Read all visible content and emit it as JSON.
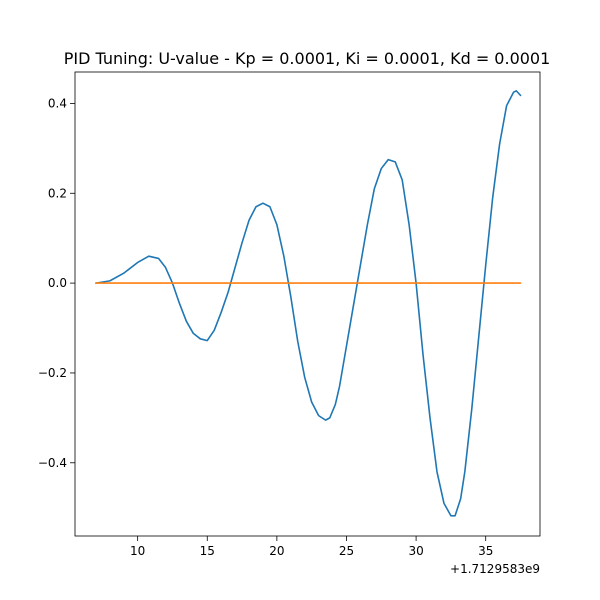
{
  "chart_data": {
    "type": "line",
    "title": "PID Tuning: U-value - Kp = 0.0001, Ki = 0.0001, Kd = 0.0001",
    "xlabel": "",
    "ylabel": "",
    "x_offset_label": "+1.7129583e9",
    "xlim": [
      5.5,
      38.9
    ],
    "ylim": [
      -0.563,
      0.47
    ],
    "xticks": [
      10,
      15,
      20,
      25,
      30,
      35
    ],
    "xtick_labels": [
      "10",
      "15",
      "20",
      "25",
      "30",
      "35"
    ],
    "yticks": [
      -0.4,
      -0.2,
      0.0,
      0.2,
      0.4
    ],
    "ytick_labels": [
      "−0.4",
      "−0.2",
      "0.0",
      "0.2",
      "0.4"
    ],
    "grid": false,
    "series": [
      {
        "color": "#1f77b4",
        "x": [
          7.0,
          8.0,
          9.0,
          10.0,
          10.8,
          11.5,
          12.0,
          12.5,
          13.0,
          13.5,
          14.0,
          14.5,
          15.0,
          15.5,
          16.0,
          16.5,
          17.0,
          17.5,
          18.0,
          18.5,
          19.0,
          19.5,
          20.0,
          20.5,
          21.0,
          21.5,
          22.0,
          22.5,
          23.0,
          23.5,
          23.8,
          24.2,
          24.5,
          25.0,
          25.5,
          26.0,
          26.5,
          27.0,
          27.5,
          28.0,
          28.5,
          29.0,
          29.5,
          30.0,
          30.5,
          31.0,
          31.5,
          32.0,
          32.5,
          32.8,
          33.2,
          33.5,
          34.0,
          34.5,
          35.0,
          35.5,
          36.0,
          36.5,
          37.0,
          37.2,
          37.5
        ],
        "y": [
          0.0,
          0.005,
          0.022,
          0.046,
          0.06,
          0.055,
          0.035,
          0.0,
          -0.045,
          -0.085,
          -0.112,
          -0.124,
          -0.128,
          -0.105,
          -0.065,
          -0.02,
          0.035,
          0.09,
          0.14,
          0.17,
          0.178,
          0.17,
          0.13,
          0.06,
          -0.03,
          -0.13,
          -0.21,
          -0.265,
          -0.295,
          -0.305,
          -0.3,
          -0.27,
          -0.23,
          -0.14,
          -0.05,
          0.04,
          0.13,
          0.21,
          0.255,
          0.275,
          0.27,
          0.23,
          0.13,
          0.0,
          -0.16,
          -0.3,
          -0.42,
          -0.49,
          -0.518,
          -0.518,
          -0.48,
          -0.42,
          -0.28,
          -0.12,
          0.04,
          0.19,
          0.31,
          0.395,
          0.425,
          0.428,
          0.418
        ]
      },
      {
        "color": "#ff7f0e",
        "x": [
          7.0,
          37.5
        ],
        "y": [
          0.0,
          0.0
        ]
      }
    ]
  }
}
